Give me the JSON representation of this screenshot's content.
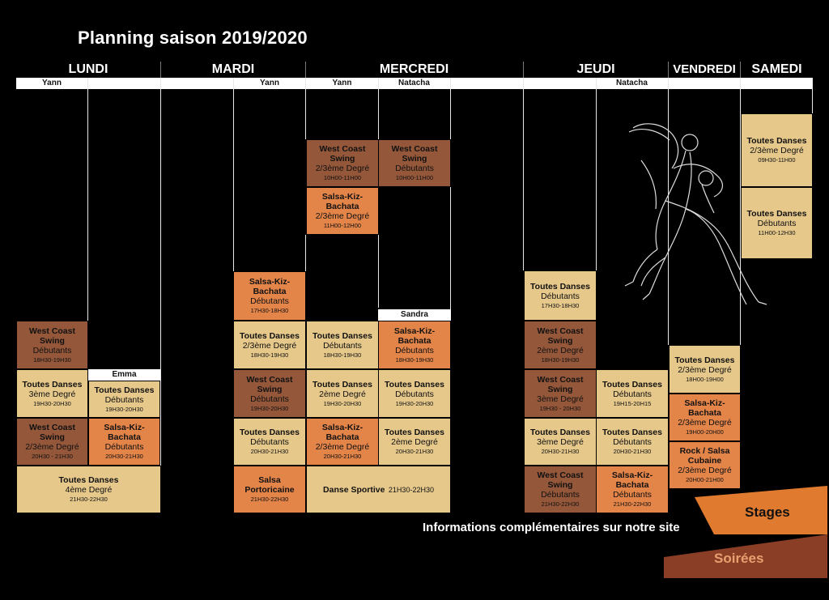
{
  "title": "Planning saison 2019/2020",
  "days": [
    "LUNDI",
    "MARDI",
    "MERCREDI",
    "JEUDI",
    "VENDREDI",
    "SAMEDI"
  ],
  "teachers": {
    "lundi_a": "Yann",
    "mardi_b": "Yann",
    "mercredi_a": "Yann",
    "mercredi_b": "Natacha",
    "jeudi_b": "Natacha"
  },
  "labels": {
    "emma": "Emma",
    "sandra": "Sandra"
  },
  "classes": {
    "lun_wcs_deb": {
      "name": "West Coast Swing",
      "level": "Débutants",
      "time": "18H30-19H30"
    },
    "lun_td_3": {
      "name": "Toutes Danses",
      "level": "3ème Degré",
      "time": "19H30-20H30"
    },
    "lun_wcs_23": {
      "name": "West Coast Swing",
      "level": "2/3ème Degré",
      "time": "20H30 - 21H30"
    },
    "lun_td_4": {
      "name": "Toutes Danses",
      "level": "4ème Degré",
      "time": "21H30-22H30"
    },
    "lun_td_deb": {
      "name": "Toutes Danses",
      "level": "Débutants",
      "time": "19H30-20H30"
    },
    "lun_skb_deb": {
      "name": "Salsa-Kiz-Bachata",
      "level": "Débutants",
      "time": "20H30-21H30"
    },
    "mar_skb_deb": {
      "name": "Salsa-Kiz-Bachata",
      "level": "Débutants",
      "time": "17H30-18H30"
    },
    "mar_td_23": {
      "name": "Toutes Danses",
      "level": "2/3ème Degré",
      "time": "18H30-19H30"
    },
    "mar_wcs_deb": {
      "name": "West Coast Swing",
      "level": "Débutants",
      "time": "19H30-20H30"
    },
    "mar_td_deb": {
      "name": "Toutes Danses",
      "level": "Débutants",
      "time": "20H30-21H30"
    },
    "mar_salsa_porto": {
      "name": "Salsa Portoricaine",
      "level": "",
      "time": "21H30-22H30"
    },
    "mer_wcs_23": {
      "name": "West Coast Swing",
      "level": "2/3ème Degré",
      "time": "10H00-11H00"
    },
    "mer_skb_23": {
      "name": "Salsa-Kiz-Bachata",
      "level": "2/3ème Degré",
      "time": "11H00-12H00"
    },
    "mer_td_deb1": {
      "name": "Toutes Danses",
      "level": "Débutants",
      "time": "18H30-19H30"
    },
    "mer_td_2": {
      "name": "Toutes Danses",
      "level": "2ème Degré",
      "time": "19H30-20H30"
    },
    "mer_skb_23b": {
      "name": "Salsa-Kiz-Bachata",
      "level": "2/3ème Degré",
      "time": "20H30-21H30"
    },
    "mer_danse_sportive": {
      "name": "Danse Sportive",
      "level": "",
      "time": "21H30-22H30"
    },
    "mer_wcs_deb": {
      "name": "West Coast Swing",
      "level": "Débutants",
      "time": "10H00-11H00"
    },
    "mer_skb_deb": {
      "name": "Salsa-Kiz-Bachata",
      "level": "Débutants",
      "time": "18H30-19H30"
    },
    "mer_td_deb2": {
      "name": "Toutes Danses",
      "level": "Débutants",
      "time": "19H30-20H30"
    },
    "mer_td_2b": {
      "name": "Toutes Danses",
      "level": "2ème Degré",
      "time": "20H30-21H30"
    },
    "jeu_td_deb": {
      "name": "Toutes Danses",
      "level": "Débutants",
      "time": "17H30-18H30"
    },
    "jeu_wcs_2": {
      "name": "West Coast Swing",
      "level": "2ème Degré",
      "time": "18H30-19H30"
    },
    "jeu_wcs_3": {
      "name": "West Coast Swing",
      "level": "3ème Degré",
      "time": "19H30 - 20H30"
    },
    "jeu_td_3": {
      "name": "Toutes Danses",
      "level": "3ème Degré",
      "time": "20H30-21H30"
    },
    "jeu_wcs_deb": {
      "name": "West Coast Swing",
      "level": "Débutants",
      "time": "21H30-22H30"
    },
    "jeu_td_deb2": {
      "name": "Toutes Danses",
      "level": "Débutants",
      "time": "19H15-20H15"
    },
    "jeu_td_deb3": {
      "name": "Toutes Danses",
      "level": "Débutants",
      "time": "20H30-21H30"
    },
    "jeu_skb_deb": {
      "name": "Salsa-Kiz-Bachata",
      "level": "Débutants",
      "time": "21H30-22H30"
    },
    "ven_td_23": {
      "name": "Toutes Danses",
      "level": "2/3ème Degré",
      "time": "18H00-19H00"
    },
    "ven_skb_23": {
      "name": "Salsa-Kiz-Bachata",
      "level": "2/3ème Degré",
      "time": "19H00-20H00"
    },
    "ven_rock": {
      "name": "Rock / Salsa Cubaine",
      "level": "2/3ème Degré",
      "time": "20H00-21H00"
    },
    "sam_td_23": {
      "name": "Toutes Danses",
      "level": "2/3ème Degré",
      "time": "09H30-11H00"
    },
    "sam_td_deb": {
      "name": "Toutes Danses",
      "level": "Débutants",
      "time": "11H00-12H30"
    }
  },
  "footer": {
    "info": "Informations complémentaires sur notre site",
    "stages": "Stages",
    "soirees": "Soirées"
  },
  "colors": {
    "tan": "#e6c88b",
    "brown": "#94573a",
    "orange": "#e38449",
    "stages": "#e07a2e",
    "soirees": "#8a3e25"
  }
}
